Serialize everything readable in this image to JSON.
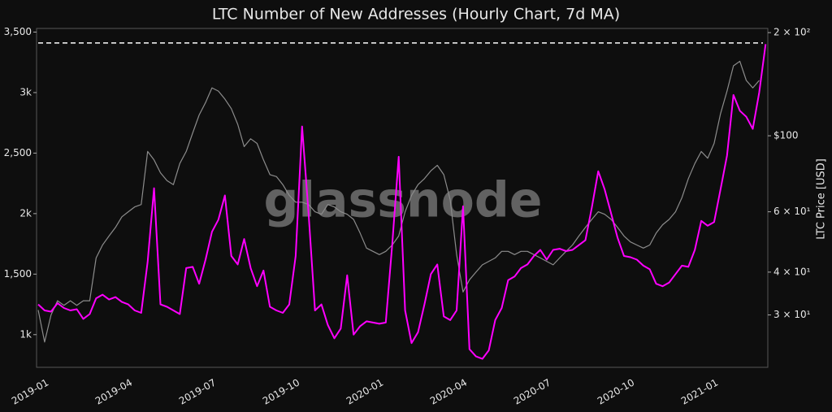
{
  "chart_data": {
    "type": "line",
    "title": "LTC Number of New Addresses (Hourly Chart, 7d MA)",
    "y2_label": "LTC Price [USD]",
    "watermark": "glassnode",
    "categories": [
      "2019-01",
      null,
      null,
      null,
      null,
      null,
      null,
      null,
      null,
      null,
      null,
      null,
      null,
      "2019-04",
      null,
      null,
      null,
      null,
      null,
      null,
      null,
      null,
      null,
      null,
      null,
      null,
      "2019-07",
      null,
      null,
      null,
      null,
      null,
      null,
      null,
      null,
      null,
      null,
      null,
      null,
      "2019-10",
      null,
      null,
      null,
      null,
      null,
      null,
      null,
      null,
      null,
      null,
      null,
      null,
      "2020-01",
      null,
      null,
      null,
      null,
      null,
      null,
      null,
      null,
      null,
      null,
      null,
      null,
      "2020-04",
      null,
      null,
      null,
      null,
      null,
      null,
      null,
      null,
      null,
      null,
      null,
      null,
      "2020-07",
      null,
      null,
      null,
      null,
      null,
      null,
      null,
      null,
      null,
      null,
      null,
      null,
      "2020-10",
      null,
      null,
      null,
      null,
      null,
      null,
      null,
      null,
      null,
      null,
      null,
      null,
      "2021-01",
      null,
      null,
      null,
      null,
      null,
      null,
      null,
      null,
      null
    ],
    "series": [
      {
        "name": "New Addresses",
        "color": "#ff00ff",
        "axis": "y",
        "values": [
          1250,
          1200,
          1190,
          1260,
          1220,
          1200,
          1210,
          1130,
          1170,
          1300,
          1330,
          1290,
          1310,
          1270,
          1250,
          1200,
          1180,
          1600,
          2210,
          1250,
          1230,
          1200,
          1170,
          1550,
          1560,
          1420,
          1620,
          1850,
          1950,
          2150,
          1650,
          1580,
          1790,
          1550,
          1400,
          1530,
          1230,
          1200,
          1180,
          1250,
          1650,
          2720,
          2000,
          1200,
          1250,
          1080,
          970,
          1050,
          1490,
          1000,
          1070,
          1110,
          1100,
          1090,
          1100,
          1750,
          2470,
          1200,
          930,
          1020,
          1250,
          1500,
          1580,
          1150,
          1120,
          1200,
          2060,
          880,
          820,
          800,
          870,
          1120,
          1220,
          1450,
          1480,
          1550,
          1580,
          1650,
          1700,
          1620,
          1700,
          1710,
          1690,
          1700,
          1740,
          1780,
          2050,
          2350,
          2200,
          2000,
          1800,
          1650,
          1640,
          1620,
          1570,
          1540,
          1420,
          1400,
          1430,
          1500,
          1570,
          1560,
          1700,
          1940,
          1900,
          1930,
          2200,
          2480,
          2980,
          2850,
          2800,
          2700,
          3000,
          3400
        ]
      },
      {
        "name": "LTC Price",
        "color": "#8c8c8c",
        "axis": "y2",
        "values": [
          31,
          25,
          30,
          33,
          32,
          33,
          32,
          33,
          33,
          44,
          48,
          51,
          54,
          58,
          60,
          62,
          63,
          90,
          85,
          78,
          74,
          72,
          83,
          90,
          102,
          115,
          125,
          138,
          135,
          128,
          120,
          108,
          93,
          98,
          95,
          85,
          77,
          76,
          72,
          67,
          64,
          64,
          63,
          60,
          59,
          63,
          62,
          60,
          59,
          57,
          52,
          47,
          46,
          45,
          46,
          48,
          51,
          60,
          67,
          72,
          75,
          79,
          82,
          77,
          65,
          45,
          35,
          38,
          40,
          42,
          43,
          44,
          46,
          46,
          45,
          46,
          46,
          45,
          44,
          43,
          42,
          44,
          46,
          48,
          51,
          54,
          57,
          60,
          59,
          57,
          54,
          51,
          49,
          48,
          47,
          48,
          52,
          55,
          57,
          60,
          66,
          75,
          83,
          90,
          86,
          95,
          116,
          135,
          160,
          165,
          145,
          138,
          145,
          null
        ]
      }
    ],
    "reference_line": 3410,
    "ylim": [
      730,
      3530
    ],
    "yticks": [
      {
        "value": 1000,
        "label": "1k"
      },
      {
        "value": 1500,
        "label": "1,500"
      },
      {
        "value": 2000,
        "label": "2k"
      },
      {
        "value": 2500,
        "label": "2,500"
      },
      {
        "value": 3000,
        "label": "3k"
      },
      {
        "value": 3500,
        "label": "3,500"
      }
    ],
    "y2lim": [
      21.1,
      205.7
    ],
    "y2_log": true,
    "y2ticks": [
      {
        "value": 30,
        "label": "3 × 10¹"
      },
      {
        "value": 40,
        "label": "4 × 10¹"
      },
      {
        "value": 60,
        "label": "6 × 10¹"
      },
      {
        "value": 100,
        "label": "$100"
      },
      {
        "value": 200,
        "label": "2 × 10²"
      }
    ]
  }
}
